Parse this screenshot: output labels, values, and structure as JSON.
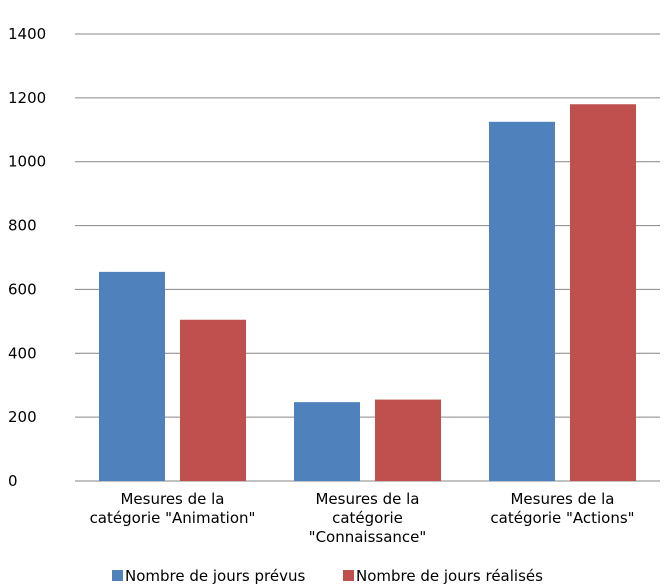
{
  "chart_data": {
    "type": "bar",
    "categories": [
      [
        "Mesures de la",
        "catégorie \"Animation\""
      ],
      [
        "Mesures de la",
        "catégorie",
        "\"Connaissance\""
      ],
      [
        "Mesures de la",
        "catégorie \"Actions\""
      ]
    ],
    "series": [
      {
        "name": "Nombre de jours prévus",
        "color": "#4F81BD",
        "values": [
          655,
          247,
          1125
        ]
      },
      {
        "name": "Nombre de jours réalisés",
        "color": "#C0504D",
        "values": [
          505,
          255,
          1180
        ]
      }
    ],
    "yticks": [
      "0",
      "200",
      "400",
      "600",
      "800",
      "1000",
      "1200",
      "1400"
    ],
    "ylim": [
      0,
      1400
    ],
    "grid": true,
    "legend_position": "bottom"
  }
}
